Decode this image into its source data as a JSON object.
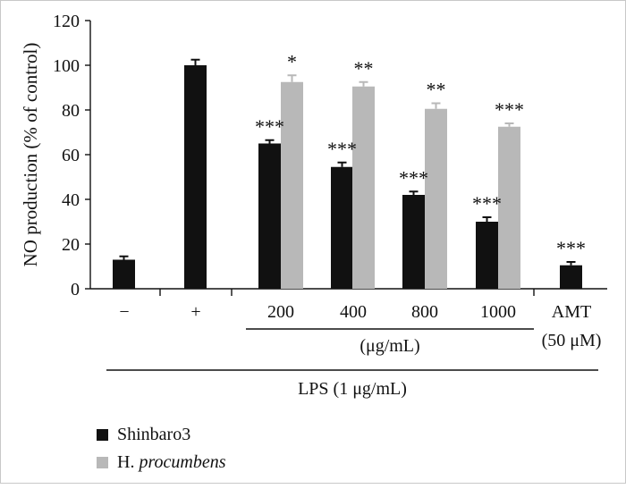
{
  "chart_data": {
    "type": "bar",
    "ylabel": "NO production (% of control)",
    "ylim": [
      0,
      120
    ],
    "yticks": [
      0,
      20,
      40,
      60,
      80,
      100,
      120
    ],
    "categories": [
      "−",
      "+",
      "200",
      "400",
      "800",
      "1000",
      "AMT"
    ],
    "category_sublabels": {
      "AMT": "(50 μM)"
    },
    "concentration_unit_label": "(μg/mL)",
    "group_label": "LPS (1 μg/mL)",
    "series": [
      {
        "name": "Shinbaro3",
        "color": "#111111",
        "values": [
          13,
          100,
          65,
          54.5,
          42,
          30,
          10.5
        ],
        "errors": [
          1.5,
          2.5,
          1.5,
          2.0,
          1.5,
          2.0,
          1.5
        ],
        "significance": [
          "",
          "",
          "***",
          "***",
          "***",
          "***",
          "***"
        ]
      },
      {
        "name": "H. procumbens",
        "color": "#b8b8b8",
        "values": [
          null,
          null,
          92.5,
          90.5,
          80.5,
          72.5,
          null
        ],
        "errors": [
          null,
          null,
          3.0,
          2.0,
          2.5,
          1.5,
          null
        ],
        "significance": [
          "",
          "",
          "*",
          "**",
          "**",
          "***",
          ""
        ]
      }
    ],
    "legend": {
      "position": "bottom-left",
      "entries": [
        {
          "label": "Shinbaro3",
          "color": "#111111"
        },
        {
          "label_prefix": "H. ",
          "label_italic": "procumbens",
          "color": "#b8b8b8"
        }
      ]
    }
  }
}
